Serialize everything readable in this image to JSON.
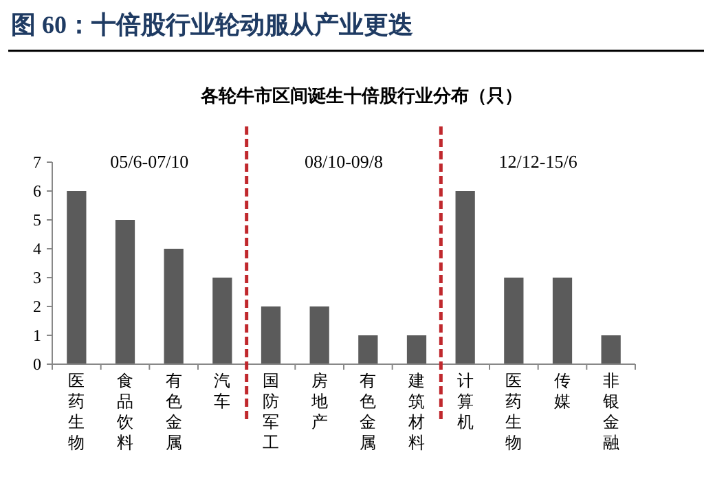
{
  "chart_data": {
    "type": "bar",
    "title": "图 60：十倍股行业轮动服从产业更迭",
    "subtitle": "各轮牛市区间诞生十倍股行业分布（只）",
    "categories": [
      "医药生物",
      "食品饮料",
      "有色金属",
      "汽车",
      "国防军工",
      "房地产",
      "有色金属",
      "建筑材料",
      "计算机",
      "医药生物",
      "传媒",
      "非银金融"
    ],
    "values": [
      6,
      5,
      4,
      3,
      2,
      2,
      1,
      1,
      6,
      3,
      3,
      1
    ],
    "color": "#5b5b5b",
    "ylim": [
      0,
      7
    ],
    "yticks": [
      0,
      1,
      2,
      3,
      4,
      5,
      6,
      7
    ],
    "annotations": [
      "05/6-07/10",
      "08/10-09/8",
      "12/12-15/6"
    ],
    "grid": false
  }
}
